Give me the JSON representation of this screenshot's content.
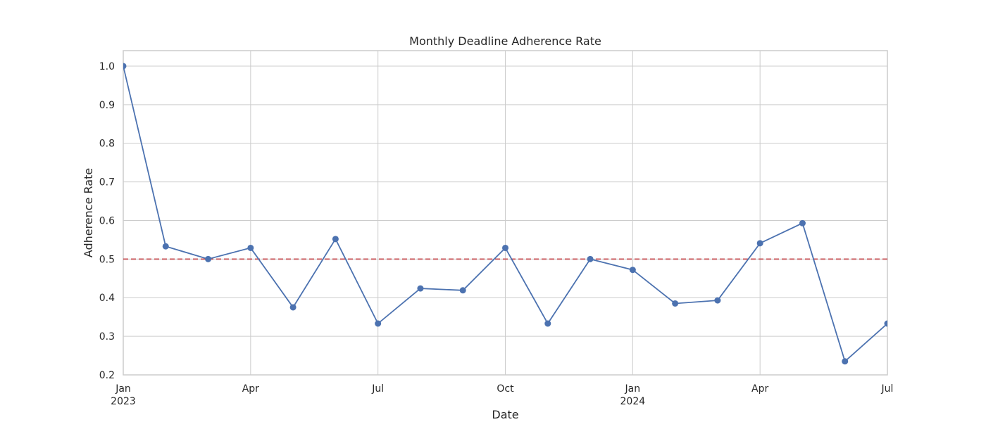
{
  "chart_data": {
    "type": "line",
    "title": "Monthly Deadline Adherence Rate",
    "xlabel": "Date",
    "ylabel": "Adherence Rate",
    "xlim": [
      "2023-01",
      "2024-07"
    ],
    "ylim": [
      0.2,
      1.04
    ],
    "yticks": [
      0.2,
      0.3,
      0.4,
      0.5,
      0.6,
      0.7,
      0.8,
      0.9,
      1.0
    ],
    "xticks": [
      {
        "date": "2023-01",
        "label": "Jan",
        "sublabel": "2023"
      },
      {
        "date": "2023-04",
        "label": "Apr",
        "sublabel": ""
      },
      {
        "date": "2023-07",
        "label": "Jul",
        "sublabel": ""
      },
      {
        "date": "2023-10",
        "label": "Oct",
        "sublabel": ""
      },
      {
        "date": "2024-01",
        "label": "Jan",
        "sublabel": "2024"
      },
      {
        "date": "2024-04",
        "label": "Apr",
        "sublabel": ""
      },
      {
        "date": "2024-07",
        "label": "Jul",
        "sublabel": ""
      }
    ],
    "x": [
      "2023-01",
      "2023-02",
      "2023-03",
      "2023-04",
      "2023-05",
      "2023-06",
      "2023-07",
      "2023-08",
      "2023-09",
      "2023-10",
      "2023-11",
      "2023-12",
      "2024-01",
      "2024-02",
      "2024-03",
      "2024-04",
      "2024-05",
      "2024-06",
      "2024-07"
    ],
    "series": [
      {
        "values": [
          1.0,
          0.533,
          0.5,
          0.529,
          0.375,
          0.552,
          0.333,
          0.424,
          0.419,
          0.529,
          0.333,
          0.5,
          0.472,
          0.385,
          0.393,
          0.541,
          0.593,
          0.235,
          0.333
        ],
        "color": "#4c72b0",
        "marker": "circle"
      }
    ],
    "reference_line": {
      "y": 0.5,
      "color": "#c44e52",
      "style": "dashed"
    },
    "grid": true,
    "legend": "none"
  }
}
